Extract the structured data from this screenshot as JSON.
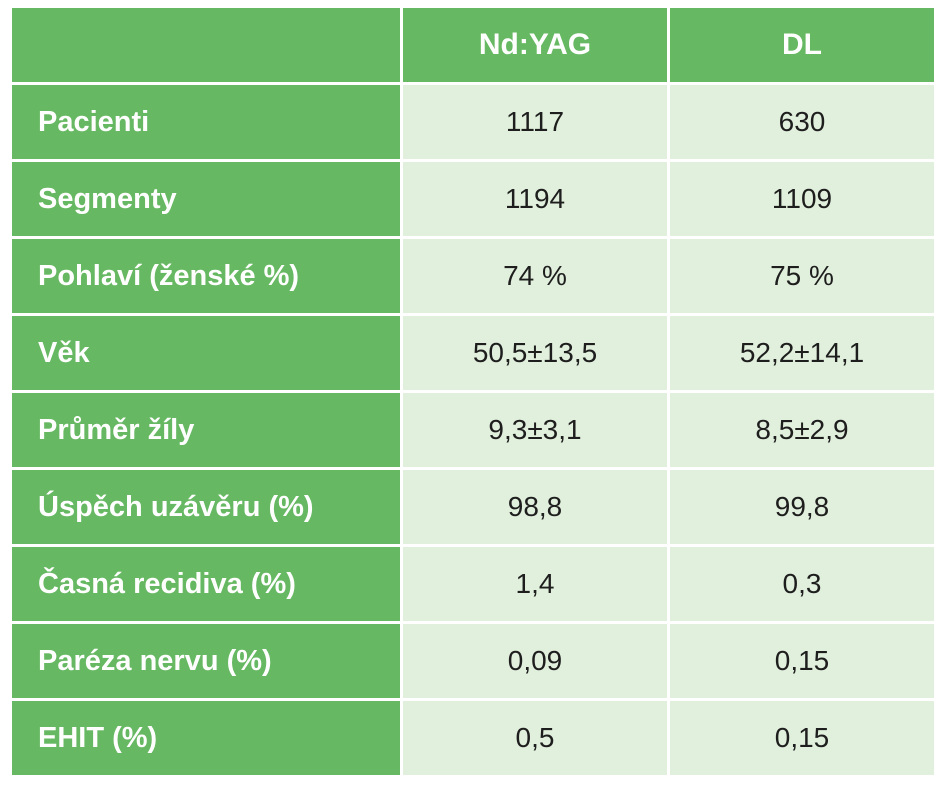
{
  "table": {
    "columns": [
      "Nd:YAG",
      "DL"
    ],
    "rows": [
      {
        "label": "Pacienti",
        "values": [
          "1117",
          "630"
        ]
      },
      {
        "label": "Segmenty",
        "values": [
          "1194",
          "1109"
        ]
      },
      {
        "label": "Pohlaví (ženské %)",
        "values": [
          "74 %",
          "75 %"
        ]
      },
      {
        "label": "Věk",
        "values": [
          "50,5±13,5",
          "52,2±14,1"
        ]
      },
      {
        "label": "Průměr žíly",
        "values": [
          "9,3±3,1",
          "8,5±2,9"
        ]
      },
      {
        "label": "Úspěch uzávěru (%)",
        "values": [
          "98,8",
          "99,8"
        ]
      },
      {
        "label": "Časná recidiva (%)",
        "values": [
          "1,4",
          "0,3"
        ]
      },
      {
        "label": "Paréza nervu (%)",
        "values": [
          "0,09",
          "0,15"
        ]
      },
      {
        "label": "EHIT (%)",
        "values": [
          "0,5",
          "0,15"
        ]
      }
    ],
    "colors": {
      "header": "#66b862",
      "cell": "#e1f0dc",
      "text": "#1e1e1e"
    }
  }
}
